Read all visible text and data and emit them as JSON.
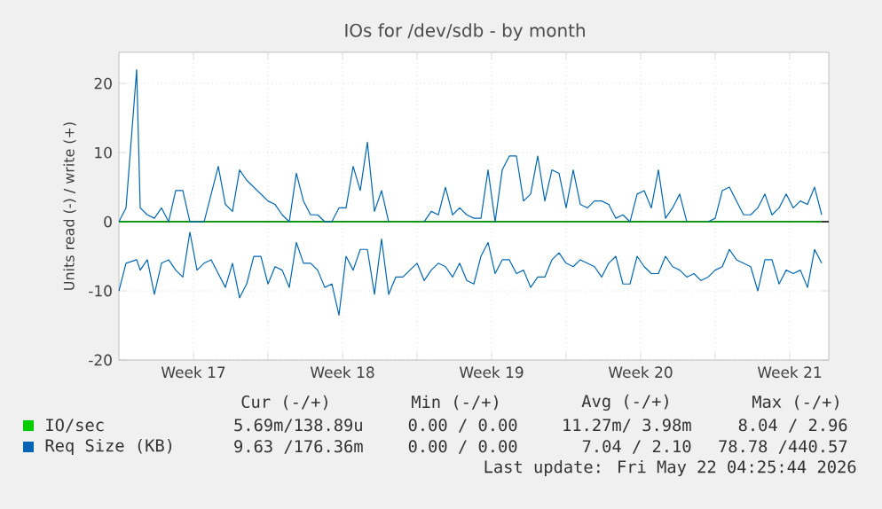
{
  "chart_data": {
    "type": "line",
    "title": "IOs for /dev/sdb - by month",
    "ylabel": "Units read (-) / write (+)",
    "x": [
      "2026-04-20T00:00",
      "2026-04-20T08:00",
      "2026-04-20T20:00",
      "2026-04-21T00:00",
      "2026-04-21T08:00",
      "2026-04-21T16:00",
      "2026-04-22T00:00",
      "2026-04-22T08:00",
      "2026-04-22T16:00",
      "2026-04-23T00:00",
      "2026-04-23T08:00",
      "2026-04-23T16:00",
      "2026-04-24T00:00",
      "2026-04-24T08:00",
      "2026-04-24T16:00",
      "2026-04-25T00:00",
      "2026-04-25T08:00",
      "2026-04-25T16:00",
      "2026-04-26T00:00",
      "2026-04-26T08:00",
      "2026-04-26T16:00",
      "2026-04-27T00:00",
      "2026-04-27T08:00",
      "2026-04-27T16:00",
      "2026-04-28T00:00",
      "2026-04-28T08:00",
      "2026-04-28T16:00",
      "2026-04-29T00:00",
      "2026-04-29T08:00",
      "2026-04-29T16:00",
      "2026-04-30T00:00",
      "2026-04-30T08:00",
      "2026-04-30T16:00",
      "2026-05-01T00:00",
      "2026-05-01T08:00",
      "2026-05-01T16:00",
      "2026-05-02T00:00",
      "2026-05-02T08:00",
      "2026-05-02T16:00",
      "2026-05-03T00:00",
      "2026-05-03T08:00",
      "2026-05-03T16:00",
      "2026-05-04T00:00",
      "2026-05-04T08:00",
      "2026-05-04T16:00",
      "2026-05-05T00:00",
      "2026-05-05T08:00",
      "2026-05-05T16:00",
      "2026-05-06T00:00",
      "2026-05-06T08:00",
      "2026-05-06T16:00",
      "2026-05-07T00:00",
      "2026-05-07T08:00",
      "2026-05-07T16:00",
      "2026-05-08T00:00",
      "2026-05-08T08:00",
      "2026-05-08T16:00",
      "2026-05-09T00:00",
      "2026-05-09T08:00",
      "2026-05-09T16:00",
      "2026-05-10T00:00",
      "2026-05-10T08:00",
      "2026-05-10T16:00",
      "2026-05-11T00:00",
      "2026-05-11T08:00",
      "2026-05-11T16:00",
      "2026-05-12T00:00",
      "2026-05-12T08:00",
      "2026-05-12T16:00",
      "2026-05-13T00:00",
      "2026-05-13T08:00",
      "2026-05-13T16:00",
      "2026-05-14T00:00",
      "2026-05-14T08:00",
      "2026-05-14T16:00",
      "2026-05-15T00:00",
      "2026-05-15T08:00",
      "2026-05-15T16:00",
      "2026-05-16T00:00",
      "2026-05-16T08:00",
      "2026-05-16T16:00",
      "2026-05-17T00:00",
      "2026-05-17T08:00",
      "2026-05-17T16:00",
      "2026-05-18T00:00",
      "2026-05-18T08:00",
      "2026-05-18T16:00",
      "2026-05-19T00:00",
      "2026-05-19T08:00",
      "2026-05-19T16:00",
      "2026-05-20T00:00",
      "2026-05-20T08:00",
      "2026-05-20T16:00",
      "2026-05-21T00:00",
      "2026-05-21T08:00",
      "2026-05-21T16:00",
      "2026-05-22T00:00",
      "2026-05-22T08:00",
      "2026-05-22T16:00",
      "2026-05-23T00:00"
    ],
    "series": [
      {
        "name": "IO/sec",
        "color": "#00cc00",
        "x": [
          "2026-04-20T00:00",
          "2026-05-23T00:00"
        ],
        "values": [
          0,
          0
        ]
      },
      {
        "name": "Req Size (KB)",
        "color": "#0066b3",
        "values": [
          0,
          2,
          22,
          2,
          1,
          0.5,
          2,
          0,
          4.5,
          4.5,
          0,
          0,
          0,
          4,
          8,
          2.5,
          1.5,
          7.5,
          6,
          5,
          4,
          3,
          2.5,
          1,
          0,
          7,
          3,
          1,
          1,
          0,
          0,
          2,
          2,
          8,
          4.5,
          11.5,
          1.5,
          4.5,
          0,
          null,
          null,
          null,
          null,
          0,
          1.5,
          1,
          5,
          1,
          2,
          1,
          0.5,
          0.5,
          7.5,
          0,
          7.5,
          9.5,
          9.5,
          3,
          4,
          9.5,
          3,
          7.5,
          7,
          2,
          7.5,
          2.5,
          2,
          3,
          3,
          2.5,
          0.5,
          1,
          0,
          4,
          4.5,
          2,
          7.5,
          0.5,
          2,
          4,
          0,
          null,
          null,
          0,
          0.5,
          4.5,
          5,
          3,
          1,
          1,
          2,
          4,
          1,
          2,
          4,
          2,
          3,
          2.5,
          5,
          1
        ]
      },
      {
        "color": "#0066b3",
        "values": [
          -10,
          -6,
          -5.5,
          -7,
          -5.5,
          -10.5,
          -6,
          -5.5,
          -7,
          -8,
          -1.5,
          -7,
          -6,
          -5.5,
          -7.5,
          -9.5,
          -6,
          -11,
          -9,
          -5,
          -5,
          -9,
          -6.5,
          -7,
          -9.5,
          -3,
          -6,
          -6,
          -7,
          -9.5,
          -9,
          -13.5,
          -5,
          -7,
          -4,
          -4,
          -10.5,
          -2.5,
          -10.5,
          -8,
          -8,
          -7,
          -6,
          -8.5,
          -7,
          -6,
          -6.5,
          -8,
          -6,
          -8.5,
          -9,
          -5,
          -3,
          -7.5,
          -5.5,
          -5.5,
          -7.5,
          -7,
          -9.5,
          -8,
          -8,
          -5.5,
          -4.5,
          -6,
          -6.5,
          -5.5,
          -6,
          -6.5,
          -8,
          -6,
          -5,
          -9,
          -9,
          -5,
          -6.5,
          -7.5,
          -7.5,
          -5,
          -6.5,
          -7,
          -8,
          -7.5,
          -8.5,
          -8,
          -7,
          -6.5,
          -4,
          -5.5,
          -6,
          -6.5,
          -10,
          -5.5,
          -5.5,
          -9,
          -7,
          -7.5,
          -7,
          -9.5,
          -4,
          -6
        ]
      }
    ],
    "xlim": [
      "2026-04-20T00:00",
      "2026-05-23T08:00"
    ],
    "xticks": [
      {
        "value": "2026-04-23T12:00",
        "label": "Week 17"
      },
      {
        "value": "2026-04-27T00:00",
        "label": null
      },
      {
        "value": "2026-04-30T12:00",
        "label": "Week 18"
      },
      {
        "value": "2026-05-04T00:00",
        "label": null
      },
      {
        "value": "2026-05-07T12:00",
        "label": "Week 19"
      },
      {
        "value": "2026-05-11T00:00",
        "label": null
      },
      {
        "value": "2026-05-14T12:00",
        "label": "Week 20"
      },
      {
        "value": "2026-05-18T00:00",
        "label": null
      },
      {
        "value": "2026-05-21T12:00",
        "label": "Week 21"
      }
    ],
    "ylim": [
      -20,
      24.5
    ],
    "yticks": [
      -20,
      -10,
      0,
      10,
      20
    ],
    "ref_lines": [
      {
        "axis": "y",
        "value": 0,
        "color": "#000000"
      }
    ],
    "grid": true,
    "legend": "bottom",
    "annotations": [
      "Cur (-/+)",
      "Min (-/+)",
      "Avg (-/+)",
      "Max (-/+)",
      "5.69m/138.89u",
      "0.00 / 0.00",
      "11.27m/ 3.98m",
      "8.04 / 2.96",
      "9.63 /176.36m",
      "0.00 / 0.00",
      "7.04 / 2.10",
      "78.78 /440.57",
      "Last update: Fri May 22 04:25:44 2026"
    ]
  }
}
